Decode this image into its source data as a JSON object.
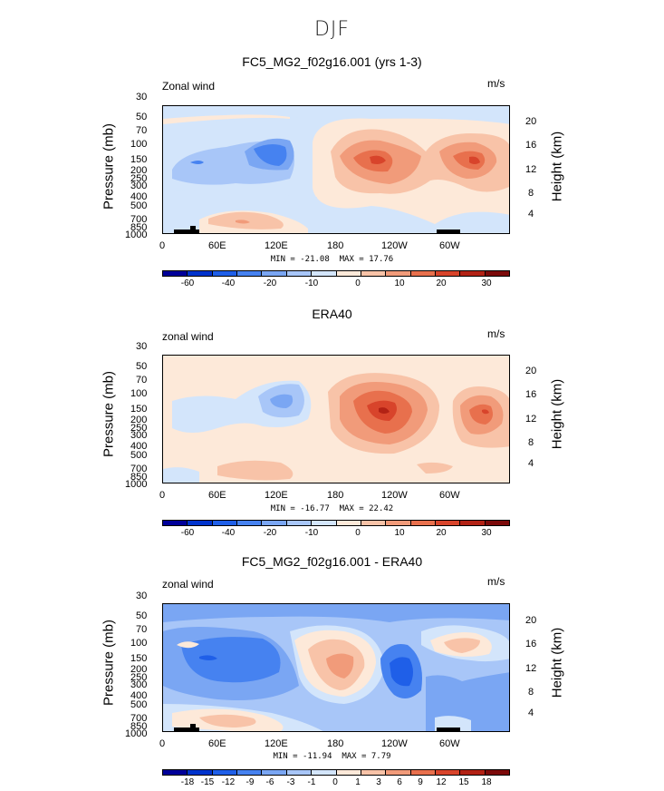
{
  "suptitle": "DJF",
  "colors": {
    "main_bar": [
      "#000099",
      "#0033cc",
      "#1f5fe8",
      "#4682f0",
      "#7aa6f3",
      "#a8c6f8",
      "#d3e5fb",
      "#fde9d9",
      "#f8c3a8",
      "#f19b7a",
      "#e8704d",
      "#d8442b",
      "#b22215",
      "#7c0a0a"
    ],
    "diff_bar": [
      "#000099",
      "#0033cc",
      "#1f5fe8",
      "#4682f0",
      "#7aa6f3",
      "#a8c6f8",
      "#d3e5fb",
      "#fde9d9",
      "#f8c3a8",
      "#f19b7a",
      "#e8704d",
      "#d8442b",
      "#b22215",
      "#7c0a0a"
    ]
  },
  "chart_data": [
    {
      "type": "heatmap",
      "title": "FC5_MG2_f02g16.001 (yrs 1-3)",
      "variable_label": "Zonal wind",
      "units": "m/s",
      "ylabel": "Pressure (mb)",
      "ylabel_right": "Height (km)",
      "x_ticks": [
        "0",
        "60E",
        "120E",
        "180",
        "120W",
        "60W"
      ],
      "y_ticks": [
        "30",
        "50",
        "70",
        "100",
        "150",
        "200",
        "250",
        "300",
        "400",
        "500",
        "700",
        "850",
        "1000"
      ],
      "y_ticks_right": [
        "20",
        "16",
        "12",
        "8",
        "4"
      ],
      "min": -21.08,
      "max": 17.76,
      "min_text": "MIN =  -21.08",
      "max_text": "MAX =   17.76",
      "colorbar_labels": [
        "-60",
        "-40",
        "-20",
        "-10",
        "0",
        "10",
        "20",
        "30"
      ]
    },
    {
      "type": "heatmap",
      "title": "ERA40",
      "variable_label": "zonal wind",
      "units": "m/s",
      "ylabel": "Pressure (mb)",
      "ylabel_right": "Height (km)",
      "x_ticks": [
        "0",
        "60E",
        "120E",
        "180",
        "120W",
        "60W"
      ],
      "y_ticks": [
        "30",
        "50",
        "70",
        "100",
        "150",
        "200",
        "250",
        "300",
        "400",
        "500",
        "700",
        "850",
        "1000"
      ],
      "y_ticks_right": [
        "20",
        "16",
        "12",
        "8",
        "4"
      ],
      "min": -16.77,
      "max": 22.42,
      "min_text": "MIN =  -16.77",
      "max_text": "MAX =   22.42",
      "colorbar_labels": [
        "-60",
        "-40",
        "-20",
        "-10",
        "0",
        "10",
        "20",
        "30"
      ]
    },
    {
      "type": "heatmap",
      "title": "FC5_MG2_f02g16.001 - ERA40",
      "variable_label": "zonal wind",
      "units": "m/s",
      "ylabel": "Pressure (mb)",
      "ylabel_right": "Height (km)",
      "x_ticks": [
        "0",
        "60E",
        "120E",
        "180",
        "120W",
        "60W"
      ],
      "y_ticks": [
        "30",
        "50",
        "70",
        "100",
        "150",
        "200",
        "250",
        "300",
        "400",
        "500",
        "700",
        "850",
        "1000"
      ],
      "y_ticks_right": [
        "20",
        "16",
        "12",
        "8",
        "4"
      ],
      "min": -11.94,
      "max": 7.79,
      "min_text": "MIN =  -11.94",
      "max_text": "MAX =    7.79",
      "colorbar_labels": [
        "-18",
        "-15",
        "-12",
        "-9",
        "-6",
        "-3",
        "-1",
        "0",
        "1",
        "3",
        "6",
        "9",
        "12",
        "15",
        "18"
      ]
    }
  ]
}
